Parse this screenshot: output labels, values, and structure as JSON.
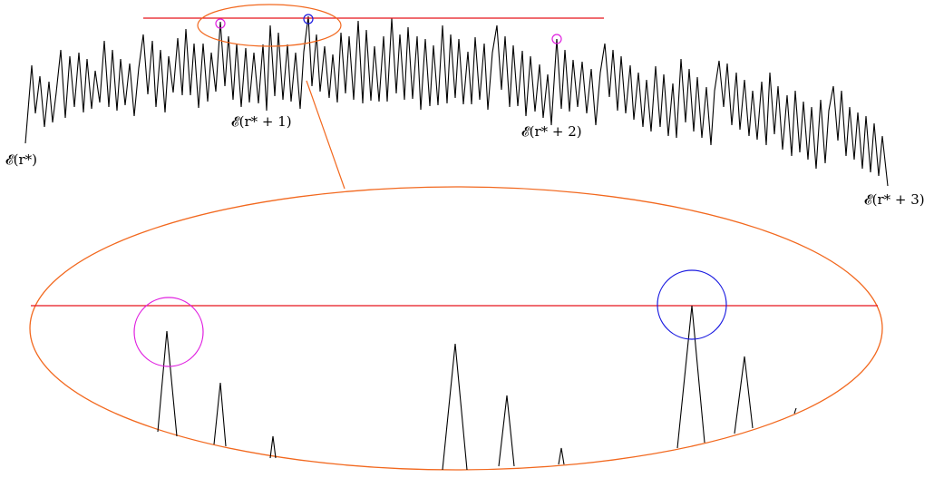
{
  "colors": {
    "wave": "#000000",
    "threshold": "#e8141c",
    "zoom": "#f2681e",
    "peak_magenta": "#e020e0",
    "peak_blue": "#1a1ae0"
  },
  "labels": {
    "start": "𝓔(r*)",
    "first": "𝓔(r* + 1)",
    "second": "𝓔(r* + 2)",
    "third": "𝓔(r* + 3)"
  }
}
